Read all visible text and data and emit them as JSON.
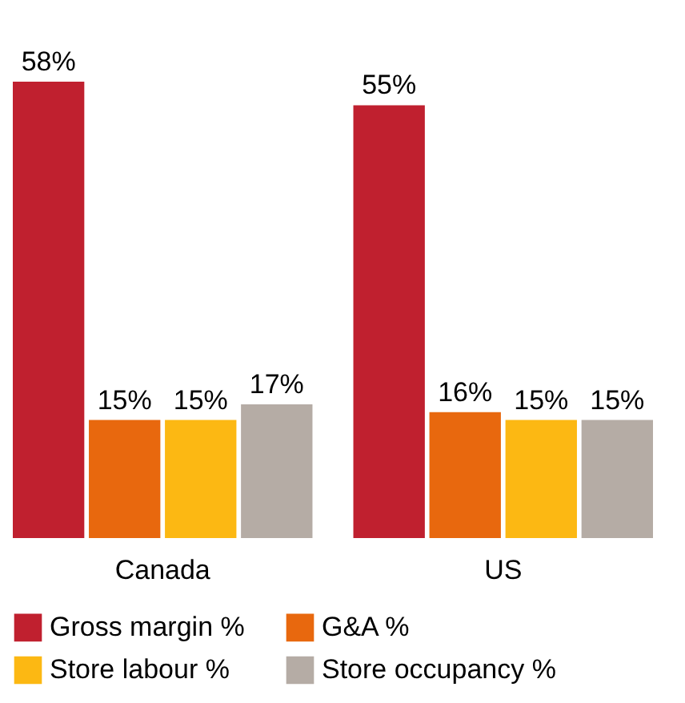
{
  "chart_data": {
    "type": "bar",
    "categories": [
      "Canada",
      "US"
    ],
    "legend": "bottom",
    "grid": false,
    "series": [
      {
        "name": "Gross margin %",
        "color": "#c0202f",
        "values": [
          58,
          55
        ],
        "value_labels": [
          "58%",
          "55%"
        ]
      },
      {
        "name": "G&A %",
        "color": "#e8680e",
        "values": [
          15,
          16
        ],
        "value_labels": [
          "15%",
          "16%"
        ]
      },
      {
        "name": "Store labour %",
        "color": "#fcb813",
        "values": [
          15,
          15
        ],
        "value_labels": [
          "15%",
          "15%"
        ]
      },
      {
        "name": "Store occupancy %",
        "color": "#b5aca5",
        "values": [
          17,
          15
        ],
        "value_labels": [
          "17%",
          "15%"
        ]
      }
    ]
  }
}
